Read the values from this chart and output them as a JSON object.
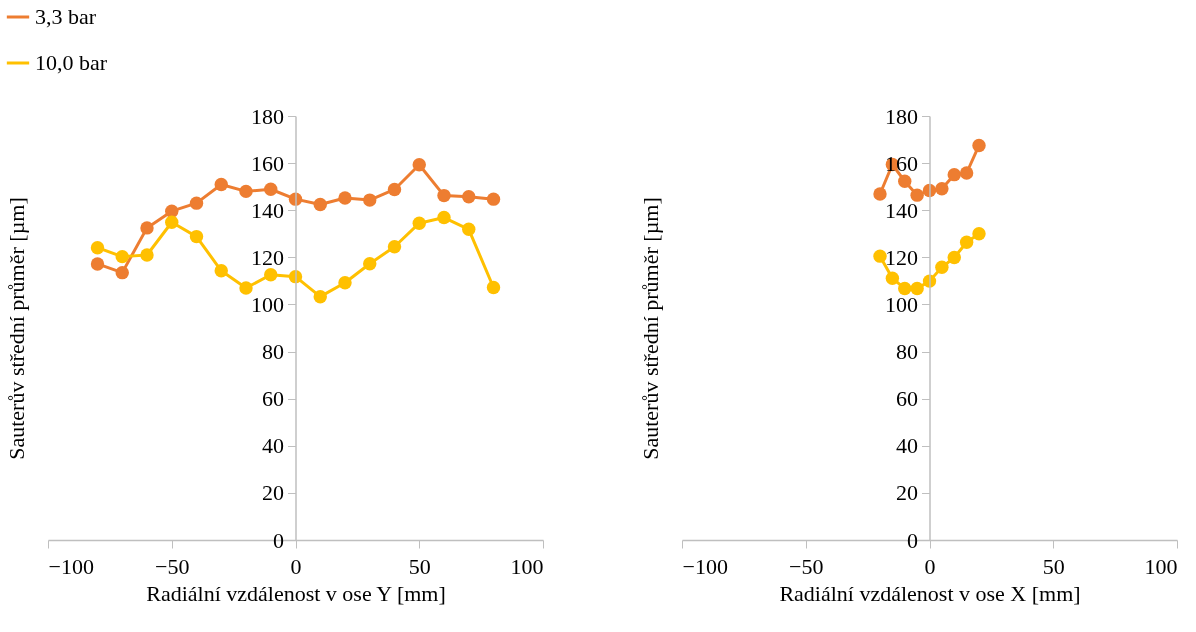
{
  "chart_data": [
    {
      "type": "line",
      "xlabel": "Radiální vzdálenost v ose Y [mm]",
      "ylabel": "Sauterův střední průměr [µm]",
      "xlim": [
        -100,
        100
      ],
      "xticks": [
        -100,
        -50,
        0,
        50,
        100
      ],
      "ylim": [
        0,
        180
      ],
      "yticks": [
        0,
        20,
        40,
        60,
        80,
        100,
        120,
        140,
        160,
        180
      ],
      "grid": false,
      "legend": "top left",
      "marker": "circle",
      "line_style": "solid",
      "x": [
        -80,
        -70,
        -60,
        -50,
        -40,
        -30,
        -20,
        -10,
        0,
        10,
        20,
        30,
        40,
        50,
        60,
        70,
        80
      ],
      "series": [
        {
          "name": "3,3 bar",
          "color": "#ed7d31",
          "values": [
            117.2,
            113.5,
            132.5,
            139.6,
            143,
            150.9,
            148,
            148.9,
            144.7,
            142.4,
            145.2,
            144.3,
            148.8,
            159.3,
            146.2,
            145.7,
            144.7
          ]
        },
        {
          "name": "10,0 bar",
          "color": "#ffc000",
          "values": [
            124.1,
            120.3,
            121,
            134.9,
            128.8,
            114.3,
            107,
            112.6,
            111.8,
            103.3,
            109.2,
            117.3,
            124.5,
            134.5,
            136.9,
            131.9,
            107.2
          ]
        }
      ]
    },
    {
      "type": "line",
      "xlabel": "Radiální vzdálenost v ose X [mm]",
      "ylabel": "Sauterův střední průměr [µm]",
      "xlim": [
        -100,
        100
      ],
      "xticks": [
        -100,
        -50,
        0,
        50,
        100
      ],
      "ylim": [
        0,
        180
      ],
      "yticks": [
        0,
        20,
        40,
        60,
        80,
        100,
        120,
        140,
        160,
        180
      ],
      "grid": false,
      "legend": false,
      "marker": "circle",
      "line_style": "solid",
      "x": [
        -20,
        -15,
        -10,
        -5,
        0,
        5,
        10,
        15,
        20
      ],
      "series": [
        {
          "name": "3,3 bar",
          "color": "#ed7d31",
          "values": [
            146.9,
            159.4,
            152.3,
            146.4,
            148.4,
            149.1,
            155.1,
            155.8,
            167.5
          ]
        },
        {
          "name": "10,0 bar",
          "color": "#ffc000",
          "values": [
            120.5,
            111.1,
            106.8,
            106.8,
            109.9,
            115.8,
            119.9,
            126.4,
            130
          ]
        }
      ]
    }
  ]
}
